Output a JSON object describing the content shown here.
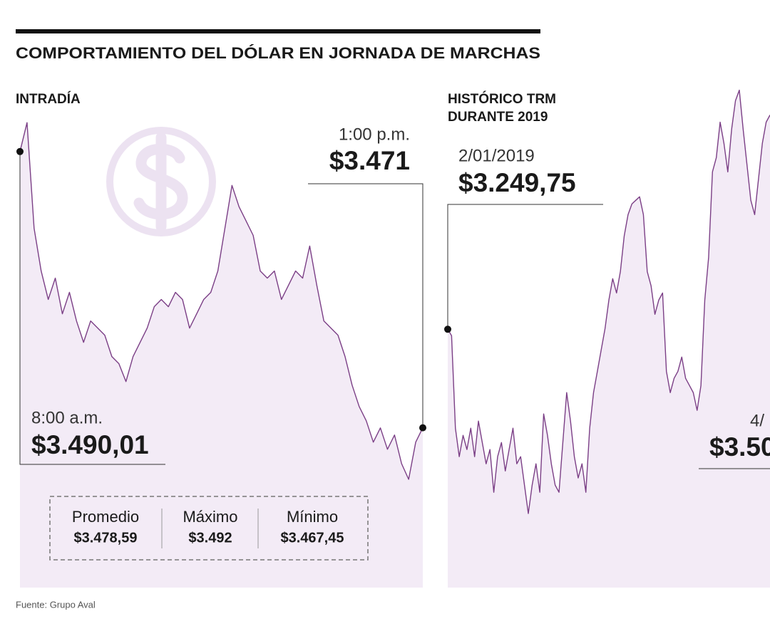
{
  "title": "COMPORTAMIENTO DEL DÓLAR EN JORNADA DE MARCHAS",
  "source": "Fuente: Grupo Aval",
  "stats": [
    {
      "label": "Promedio",
      "value": "$3.478,59"
    },
    {
      "label": "Máximo",
      "value": "$3.492"
    },
    {
      "label": "Mínimo",
      "value": "$3.467,45"
    }
  ],
  "chart_data": [
    {
      "type": "area",
      "title": [
        "INTRADÍA"
      ],
      "color": "#7b3f86",
      "fill": "#f3ebf6",
      "ylim": [
        3460,
        3492.5
      ],
      "values": [
        3490.01,
        3492,
        3484.73,
        3481.79,
        3479.83,
        3481.3,
        3478.84,
        3480.32,
        3478.35,
        3476.88,
        3478.35,
        3477.86,
        3477.37,
        3475.9,
        3475.41,
        3474.18,
        3475.9,
        3476.88,
        3477.86,
        3479.33,
        3479.83,
        3479.33,
        3480.32,
        3479.83,
        3477.86,
        3478.84,
        3479.83,
        3480.32,
        3481.79,
        3484.73,
        3487.68,
        3486.21,
        3485.23,
        3484.24,
        3481.79,
        3481.3,
        3481.79,
        3479.83,
        3480.81,
        3481.79,
        3481.3,
        3483.51,
        3480.81,
        3478.35,
        3477.86,
        3477.37,
        3475.9,
        3473.93,
        3472.46,
        3471.48,
        3470.01,
        3470.99,
        3469.52,
        3470.5,
        3468.53,
        3467.45,
        3470.01,
        3471
      ],
      "annotations": [
        {
          "label": "8:00 a.m.",
          "value_label": "$3.490,01"
        },
        {
          "label": "1:00 p.m.",
          "value_label": "$3.471"
        }
      ]
    },
    {
      "type": "area",
      "title": [
        "HISTÓRICO TRM",
        "DURANTE 2019"
      ],
      "color": "#7b3f86",
      "fill": "#f3ebf6",
      "ylim": [
        3040,
        3450
      ],
      "values": [
        3249.75,
        3244.5,
        3169.4,
        3146.3,
        3163.6,
        3152.1,
        3169.4,
        3146.3,
        3175.2,
        3157.8,
        3140.5,
        3152.1,
        3117.4,
        3146.3,
        3157.8,
        3134.7,
        3152.1,
        3169.4,
        3140.5,
        3146.3,
        3123.2,
        3100.1,
        3123.2,
        3140.5,
        3117.4,
        3181.0,
        3163.6,
        3140.5,
        3123.2,
        3117.4,
        3157.8,
        3198.3,
        3175.2,
        3146.3,
        3129.0,
        3140.5,
        3117.4,
        3169.4,
        3198.3,
        3215.6,
        3233.0,
        3250.3,
        3273.4,
        3290.8,
        3279.2,
        3296.6,
        3325.5,
        3342.8,
        3351.5,
        3354.4,
        3357.3,
        3342.8,
        3296.6,
        3285.0,
        3261.9,
        3273.4,
        3279.2,
        3215.6,
        3198.3,
        3209.9,
        3215.6,
        3227.2,
        3209.9,
        3204.1,
        3198.3,
        3183.9,
        3204.1,
        3273.4,
        3308.1,
        3377.5,
        3389.0,
        3417.9,
        3400.6,
        3377.5,
        3412.2,
        3435.3,
        3443.9,
        3412.2,
        3383.3,
        3354.4,
        3342.8,
        3371.7,
        3400.6,
        3417.9,
        3423.7
      ],
      "annotations": [
        {
          "label": "2/01/2019",
          "value_label": "$3.249,75"
        },
        {
          "label": "4/",
          "value_label": "$3.50"
        }
      ]
    }
  ]
}
